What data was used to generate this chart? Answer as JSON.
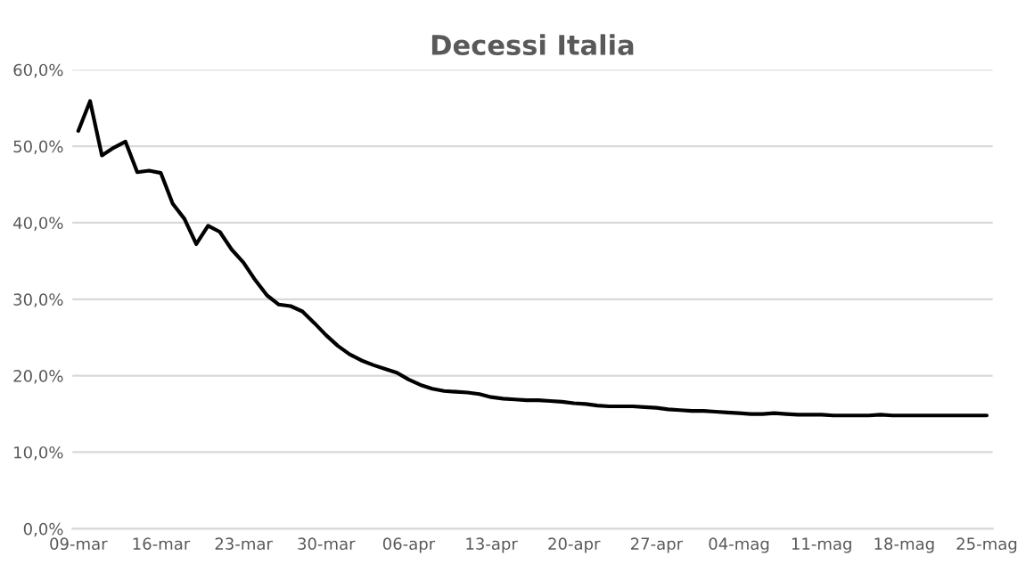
{
  "chart_data": {
    "type": "line",
    "title": "Decessi Italia",
    "categories": [
      "09-mar",
      null,
      null,
      null,
      null,
      null,
      null,
      "16-mar",
      null,
      null,
      null,
      null,
      null,
      null,
      "23-mar",
      null,
      null,
      null,
      null,
      null,
      null,
      "30-mar",
      null,
      null,
      null,
      null,
      null,
      null,
      "06-apr",
      null,
      null,
      null,
      null,
      null,
      null,
      "13-apr",
      null,
      null,
      null,
      null,
      null,
      null,
      "20-apr",
      null,
      null,
      null,
      null,
      null,
      null,
      "27-apr",
      null,
      null,
      null,
      null,
      null,
      null,
      "04-mag",
      null,
      null,
      null,
      null,
      null,
      null,
      "11-mag",
      null,
      null,
      null,
      null,
      null,
      null,
      "18-mag",
      null,
      null,
      null,
      null,
      null,
      null,
      "25-mag"
    ],
    "series": [
      {
        "color": "#000000",
        "values": [
          52.0,
          55.9,
          48.8,
          49.8,
          50.6,
          46.6,
          46.8,
          46.5,
          42.5,
          40.5,
          37.2,
          39.6,
          38.8,
          36.5,
          34.8,
          32.5,
          30.5,
          29.3,
          29.1,
          28.4,
          26.9,
          25.3,
          23.9,
          22.8,
          22.0,
          21.4,
          20.9,
          20.4,
          19.5,
          18.8,
          18.3,
          18.0,
          17.9,
          17.8,
          17.6,
          17.2,
          17.0,
          16.9,
          16.8,
          16.8,
          16.7,
          16.6,
          16.4,
          16.3,
          16.1,
          16.0,
          16.0,
          16.0,
          15.9,
          15.8,
          15.6,
          15.5,
          15.4,
          15.4,
          15.3,
          15.2,
          15.1,
          15.0,
          15.0,
          15.1,
          15.0,
          14.9,
          14.9,
          14.9,
          14.8,
          14.8,
          14.8,
          14.8,
          14.9,
          14.8,
          14.8,
          14.8,
          14.8,
          14.8,
          14.8,
          14.8,
          14.8,
          14.8
        ]
      }
    ],
    "ylim": [
      0,
      60
    ],
    "yticks": [
      {
        "value": 0,
        "label": "0,0%"
      },
      {
        "value": 10,
        "label": "10,0%"
      },
      {
        "value": 20,
        "label": "20,0%"
      },
      {
        "value": 30,
        "label": "30,0%"
      },
      {
        "value": 40,
        "label": "40,0%"
      },
      {
        "value": 50,
        "label": "50,0%"
      },
      {
        "value": 60,
        "label": "60,0%"
      }
    ],
    "grid": "y",
    "marker": "none",
    "line_style": "solid"
  }
}
